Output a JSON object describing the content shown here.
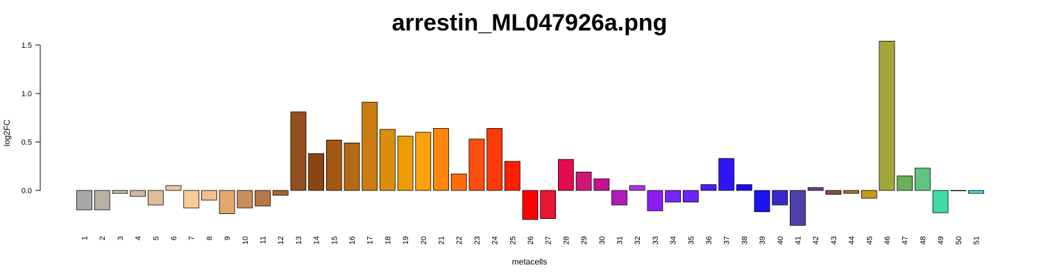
{
  "chart_data": {
    "type": "bar",
    "title": "arrestin_ML047926a.png",
    "xlabel": "metacells",
    "ylabel": "log2FC",
    "ylim": [
      -0.5,
      1.5
    ],
    "yticks": [
      "0.0",
      "0.5",
      "1.0",
      "1.5"
    ],
    "grid": false,
    "categories": [
      "1",
      "2",
      "3",
      "4",
      "5",
      "6",
      "7",
      "8",
      "9",
      "10",
      "11",
      "12",
      "13",
      "14",
      "15",
      "16",
      "17",
      "18",
      "19",
      "20",
      "21",
      "22",
      "23",
      "24",
      "25",
      "26",
      "27",
      "28",
      "29",
      "30",
      "31",
      "32",
      "33",
      "34",
      "35",
      "36",
      "37",
      "38",
      "39",
      "40",
      "41",
      "42",
      "43",
      "44",
      "45",
      "46",
      "47",
      "48",
      "49",
      "50",
      "51"
    ],
    "values": [
      -0.2,
      -0.2,
      -0.03,
      -0.06,
      -0.15,
      0.05,
      -0.18,
      -0.1,
      -0.24,
      -0.18,
      -0.16,
      -0.05,
      0.81,
      0.38,
      0.52,
      0.49,
      0.91,
      0.63,
      0.56,
      0.6,
      0.64,
      0.17,
      0.53,
      0.64,
      0.3,
      -0.3,
      -0.29,
      0.32,
      0.19,
      0.12,
      -0.15,
      0.05,
      -0.21,
      -0.12,
      -0.12,
      0.06,
      0.33,
      0.06,
      -0.22,
      -0.15,
      -0.36,
      0.03,
      -0.04,
      -0.03,
      -0.08,
      1.54,
      0.15,
      0.23,
      -0.23,
      0.0,
      -0.03
    ],
    "colors": [
      "#a9a9a9",
      "#b8b1a3",
      "#c9b69c",
      "#d3b7a0",
      "#e0bd99",
      "#f2c69b",
      "#f8cc99",
      "#f3be8a",
      "#dfa86e",
      "#cd8d5a",
      "#b87745",
      "#a8642c",
      "#944f1e",
      "#8b4512",
      "#a35811",
      "#b56815",
      "#c97d0c",
      "#dc8d0a",
      "#ee9c06",
      "#fda00b",
      "#ff860b",
      "#ff6d08",
      "#ff4e10",
      "#ff3a0a",
      "#ff2000",
      "#ff0000",
      "#e81434",
      "#e30c4e",
      "#d21678",
      "#c41491",
      "#b11bbc",
      "#ae33e0",
      "#8d1df4",
      "#7824f9",
      "#6a23f8",
      "#4c1cf8",
      "#2d17f6",
      "#1c0aef",
      "#1a14ec",
      "#3728ce",
      "#4f3fa8",
      "#6b3f8f",
      "#8a5040",
      "#a8722c",
      "#c9981e",
      "#a4a639",
      "#6baf5a",
      "#5cc580",
      "#40dba8",
      "#55dfc8",
      "#36e2e4"
    ]
  }
}
